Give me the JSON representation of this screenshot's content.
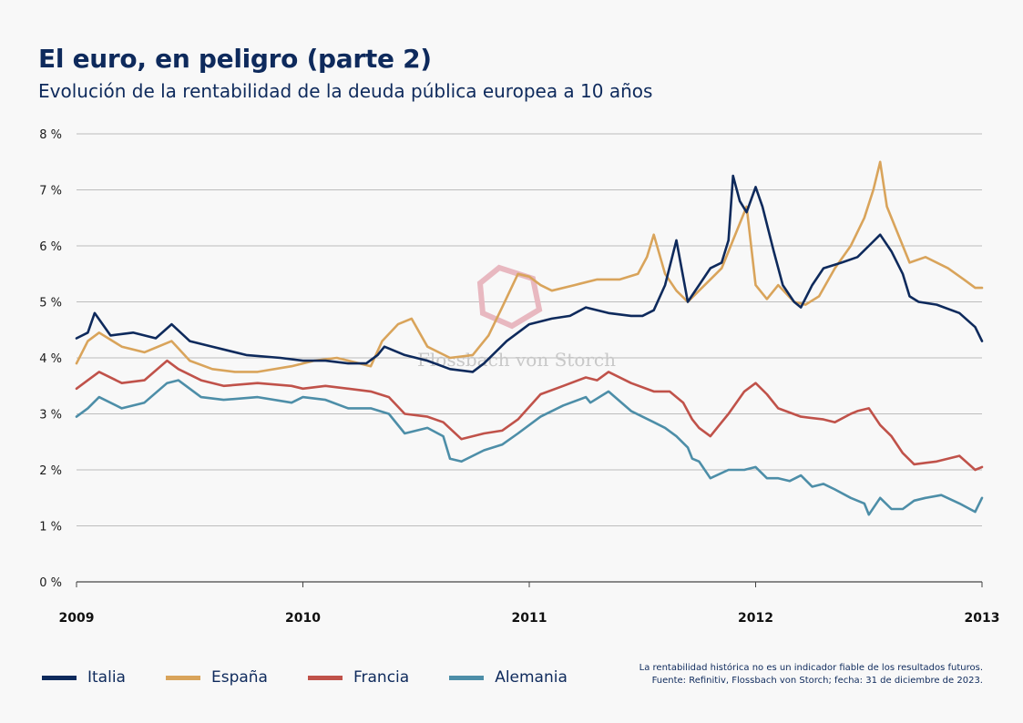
{
  "header": {
    "title": "El euro, en peligro (parte 2)",
    "subtitle": "Evolución de la rentabilidad de la deuda pública europea a 10 años"
  },
  "footnote": {
    "line1": "La rentabilidad histórica no es un indicador fiable de los resultados futuros.",
    "line2": "Fuente: Refinitiv, Flossbach von Storch; fecha: 31 de diciembre de 2023."
  },
  "watermark": "Flossbach von Storch",
  "chart_data": {
    "type": "line",
    "title": "El euro, en peligro (parte 2)",
    "subtitle": "Evolución de la rentabilidad de la deuda pública europea a 10 años",
    "xlabel": "",
    "ylabel": "",
    "xlim": [
      2009,
      2013
    ],
    "ylim": [
      0,
      8
    ],
    "x_ticks": [
      2009,
      2010,
      2011,
      2012,
      2013
    ],
    "x_tick_labels": [
      "2009",
      "2010",
      "2011",
      "2012",
      "2013"
    ],
    "y_ticks": [
      0,
      1,
      2,
      3,
      4,
      5,
      6,
      7,
      8
    ],
    "y_tick_labels": [
      "0 %",
      "1 %",
      "2 %",
      "3 %",
      "4 %",
      "5 %",
      "6 %",
      "7 %",
      "8 %"
    ],
    "grid": "horizontal",
    "legend_position": "bottom-left",
    "series": [
      {
        "name": "Italia",
        "color": "#0e2a5c",
        "x": [
          2009.0,
          2009.05,
          2009.08,
          2009.15,
          2009.25,
          2009.35,
          2009.42,
          2009.5,
          2009.6,
          2009.75,
          2009.9,
          2010.0,
          2010.1,
          2010.2,
          2010.28,
          2010.33,
          2010.36,
          2010.45,
          2010.55,
          2010.65,
          2010.75,
          2010.8,
          2010.9,
          2011.0,
          2011.1,
          2011.18,
          2011.25,
          2011.35,
          2011.45,
          2011.5,
          2011.55,
          2011.6,
          2011.65,
          2011.7,
          2011.75,
          2011.8,
          2011.85,
          2011.88,
          2011.9,
          2011.93,
          2011.96,
          2012.0,
          2012.03,
          2012.08,
          2012.12,
          2012.17,
          2012.2,
          2012.25,
          2012.3,
          2012.38,
          2012.45,
          2012.5,
          2012.55,
          2012.6,
          2012.65,
          2012.68,
          2012.72,
          2012.8,
          2012.9,
          2012.97,
          2013.0
        ],
        "y": [
          4.35,
          4.45,
          4.8,
          4.4,
          4.45,
          4.35,
          4.6,
          4.3,
          4.2,
          4.05,
          4.0,
          3.95,
          3.95,
          3.9,
          3.9,
          4.05,
          4.2,
          4.05,
          3.95,
          3.8,
          3.75,
          3.9,
          4.3,
          4.6,
          4.7,
          4.75,
          4.9,
          4.8,
          4.75,
          4.75,
          4.85,
          5.3,
          6.1,
          5.0,
          5.3,
          5.6,
          5.7,
          6.1,
          7.25,
          6.8,
          6.6,
          7.05,
          6.7,
          5.9,
          5.3,
          5.0,
          4.9,
          5.3,
          5.6,
          5.7,
          5.8,
          6.0,
          6.2,
          5.9,
          5.5,
          5.1,
          5.0,
          4.95,
          4.8,
          4.55,
          4.3
        ]
      },
      {
        "name": "España",
        "color": "#d9a45b",
        "x": [
          2009.0,
          2009.05,
          2009.1,
          2009.2,
          2009.3,
          2009.42,
          2009.5,
          2009.6,
          2009.7,
          2009.8,
          2009.95,
          2010.05,
          2010.15,
          2010.25,
          2010.3,
          2010.35,
          2010.42,
          2010.48,
          2010.55,
          2010.65,
          2010.75,
          2010.82,
          2010.88,
          2010.95,
          2011.0,
          2011.05,
          2011.1,
          2011.2,
          2011.3,
          2011.4,
          2011.48,
          2011.52,
          2011.55,
          2011.6,
          2011.65,
          2011.7,
          2011.75,
          2011.8,
          2011.85,
          2011.88,
          2011.92,
          2011.96,
          2012.0,
          2012.05,
          2012.1,
          2012.17,
          2012.22,
          2012.28,
          2012.35,
          2012.42,
          2012.48,
          2012.52,
          2012.55,
          2012.58,
          2012.62,
          2012.68,
          2012.75,
          2012.85,
          2012.92,
          2012.97,
          2013.0
        ],
        "y": [
          3.9,
          4.3,
          4.45,
          4.2,
          4.1,
          4.3,
          3.95,
          3.8,
          3.75,
          3.75,
          3.85,
          3.95,
          4.0,
          3.9,
          3.85,
          4.3,
          4.6,
          4.7,
          4.2,
          4.0,
          4.05,
          4.4,
          4.9,
          5.5,
          5.45,
          5.3,
          5.2,
          5.3,
          5.4,
          5.4,
          5.5,
          5.8,
          6.2,
          5.5,
          5.2,
          5.0,
          5.2,
          5.4,
          5.6,
          5.9,
          6.3,
          6.7,
          5.3,
          5.05,
          5.3,
          5.0,
          4.95,
          5.1,
          5.6,
          6.0,
          6.5,
          7.0,
          7.5,
          6.7,
          6.3,
          5.7,
          5.8,
          5.6,
          5.4,
          5.25,
          5.25
        ]
      },
      {
        "name": "Francia",
        "color": "#c0524a",
        "x": [
          2009.0,
          2009.05,
          2009.1,
          2009.2,
          2009.3,
          2009.4,
          2009.45,
          2009.55,
          2009.65,
          2009.8,
          2009.95,
          2010.0,
          2010.1,
          2010.2,
          2010.3,
          2010.38,
          2010.45,
          2010.55,
          2010.62,
          2010.7,
          2010.8,
          2010.88,
          2010.95,
          2011.05,
          2011.15,
          2011.25,
          2011.3,
          2011.35,
          2011.45,
          2011.55,
          2011.62,
          2011.68,
          2011.72,
          2011.75,
          2011.8,
          2011.85,
          2011.88,
          2011.95,
          2012.0,
          2012.05,
          2012.1,
          2012.2,
          2012.3,
          2012.35,
          2012.42,
          2012.45,
          2012.5,
          2012.55,
          2012.6,
          2012.65,
          2012.7,
          2012.8,
          2012.9,
          2012.97,
          2013.0
        ],
        "y": [
          3.45,
          3.6,
          3.75,
          3.55,
          3.6,
          3.95,
          3.8,
          3.6,
          3.5,
          3.55,
          3.5,
          3.45,
          3.5,
          3.45,
          3.4,
          3.3,
          3.0,
          2.95,
          2.85,
          2.55,
          2.65,
          2.7,
          2.9,
          3.35,
          3.5,
          3.65,
          3.6,
          3.75,
          3.55,
          3.4,
          3.4,
          3.2,
          2.9,
          2.75,
          2.6,
          2.85,
          3.0,
          3.4,
          3.55,
          3.35,
          3.1,
          2.95,
          2.9,
          2.85,
          3.0,
          3.05,
          3.1,
          2.8,
          2.6,
          2.3,
          2.1,
          2.15,
          2.25,
          2.0,
          2.05
        ]
      },
      {
        "name": "Alemania",
        "color": "#4d8ea8",
        "x": [
          2009.0,
          2009.05,
          2009.1,
          2009.2,
          2009.3,
          2009.4,
          2009.45,
          2009.55,
          2009.65,
          2009.8,
          2009.95,
          2010.0,
          2010.1,
          2010.2,
          2010.3,
          2010.38,
          2010.45,
          2010.55,
          2010.62,
          2010.65,
          2010.7,
          2010.8,
          2010.88,
          2010.95,
          2011.05,
          2011.15,
          2011.25,
          2011.27,
          2011.35,
          2011.45,
          2011.55,
          2011.6,
          2011.65,
          2011.7,
          2011.72,
          2011.75,
          2011.8,
          2011.88,
          2011.95,
          2012.0,
          2012.05,
          2012.1,
          2012.15,
          2012.2,
          2012.25,
          2012.3,
          2012.35,
          2012.42,
          2012.48,
          2012.5,
          2012.55,
          2012.6,
          2012.65,
          2012.7,
          2012.75,
          2012.82,
          2012.9,
          2012.97,
          2013.0
        ],
        "y": [
          2.95,
          3.1,
          3.3,
          3.1,
          3.2,
          3.55,
          3.6,
          3.3,
          3.25,
          3.3,
          3.2,
          3.3,
          3.25,
          3.1,
          3.1,
          3.0,
          2.65,
          2.75,
          2.6,
          2.2,
          2.15,
          2.35,
          2.45,
          2.65,
          2.95,
          3.15,
          3.3,
          3.2,
          3.4,
          3.05,
          2.85,
          2.75,
          2.6,
          2.4,
          2.2,
          2.15,
          1.85,
          2.0,
          2.0,
          2.05,
          1.85,
          1.85,
          1.8,
          1.9,
          1.7,
          1.75,
          1.65,
          1.5,
          1.4,
          1.2,
          1.5,
          1.3,
          1.3,
          1.45,
          1.5,
          1.55,
          1.4,
          1.25,
          1.5
        ]
      }
    ]
  }
}
